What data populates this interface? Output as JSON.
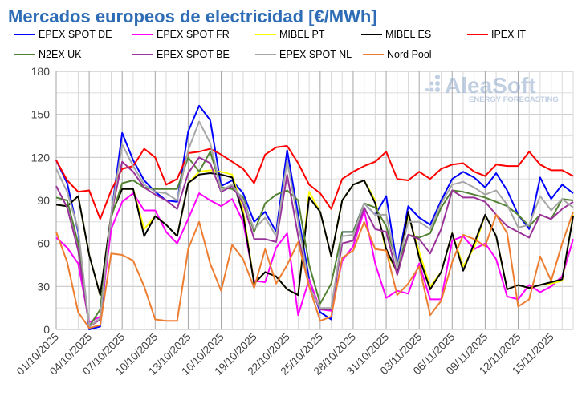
{
  "chart_data": {
    "type": "line",
    "title": "Mercados europeos de electricidad [€/MWh]",
    "title_color": "#2e6db5",
    "watermark": {
      "brand": "AleaSoft",
      "tagline": "ENERGY FORECASTING"
    },
    "ylim": [
      0,
      180
    ],
    "yticks": [
      0,
      30,
      60,
      90,
      120,
      150,
      180
    ],
    "grid": true,
    "legend_placement": "top",
    "x_start": "01/10/2025",
    "x_end": "17/11/2025",
    "xtick_labels": [
      "01/10/2025",
      "04/10/2025",
      "07/10/2025",
      "10/10/2025",
      "13/10/2025",
      "16/10/2025",
      "19/10/2025",
      "22/10/2025",
      "25/10/2025",
      "28/10/2025",
      "31/10/2025",
      "03/11/2025",
      "06/11/2025",
      "09/11/2025",
      "12/11/2025",
      "15/11/2025"
    ],
    "series": [
      {
        "name": "EPEX SPOT DE",
        "color": "#0000ff",
        "values": [
          118,
          102,
          68,
          0,
          2,
          80,
          137,
          118,
          104,
          96,
          90,
          89,
          138,
          156,
          146,
          100,
          104,
          95,
          75,
          82,
          68,
          125,
          80,
          35,
          12,
          7,
          68,
          68,
          88,
          80,
          93,
          44,
          86,
          78,
          73,
          90,
          105,
          110,
          106,
          99,
          109,
          97,
          80,
          70,
          106,
          91,
          101,
          95
        ]
      },
      {
        "name": "EPEX SPOT FR",
        "color": "#ff00ff",
        "values": [
          64,
          57,
          46,
          5,
          9,
          70,
          89,
          95,
          83,
          83,
          68,
          60,
          77,
          95,
          90,
          86,
          91,
          75,
          34,
          33,
          57,
          67,
          10,
          35,
          14,
          13,
          48,
          58,
          83,
          46,
          22,
          27,
          25,
          46,
          21,
          21,
          62,
          65,
          56,
          60,
          49,
          23,
          21,
          31,
          26,
          30,
          37,
          63
        ]
      },
      {
        "name": "MIBEL PT",
        "color": "#ffff00",
        "values": [
          87,
          86,
          93,
          52,
          24,
          80,
          98,
          98,
          70,
          79,
          73,
          65,
          102,
          110,
          111,
          110,
          108,
          83,
          32,
          40,
          37,
          28,
          24,
          96,
          82,
          51,
          90,
          101,
          104,
          90,
          54,
          40,
          80,
          54,
          30,
          40,
          67,
          44,
          57,
          80,
          65,
          28,
          31,
          29,
          31,
          32,
          34,
          80
        ]
      },
      {
        "name": "MIBEL ES",
        "color": "#000000",
        "values": [
          87,
          86,
          93,
          52,
          24,
          80,
          98,
          98,
          65,
          79,
          73,
          65,
          102,
          108,
          109,
          108,
          106,
          80,
          32,
          40,
          37,
          28,
          24,
          92,
          82,
          51,
          90,
          101,
          104,
          88,
          56,
          40,
          82,
          50,
          28,
          40,
          67,
          41,
          60,
          80,
          65,
          28,
          31,
          29,
          31,
          33,
          35,
          79
        ]
      },
      {
        "name": "IPEX IT",
        "color": "#ff0000",
        "values": [
          118,
          104,
          96,
          97,
          77,
          97,
          112,
          114,
          126,
          120,
          101,
          105,
          123,
          124,
          126,
          122,
          117,
          112,
          102,
          122,
          127,
          128,
          116,
          101,
          95,
          84,
          105,
          110,
          114,
          117,
          124,
          105,
          104,
          110,
          105,
          112,
          115,
          116,
          110,
          107,
          115,
          114,
          114,
          124,
          115,
          111,
          111,
          107
        ]
      },
      {
        "name": "N2EX UK",
        "color": "#548235",
        "values": [
          92,
          90,
          60,
          2,
          14,
          78,
          102,
          104,
          99,
          98,
          98,
          98,
          120,
          110,
          124,
          99,
          98,
          92,
          68,
          88,
          94,
          97,
          90,
          45,
          18,
          32,
          68,
          68,
          88,
          85,
          72,
          45,
          66,
          64,
          67,
          85,
          97,
          96,
          94,
          92,
          89,
          86,
          80,
          72,
          80,
          77,
          91,
          90
        ]
      },
      {
        "name": "EPEX SPOT BE",
        "color": "#993399",
        "values": [
          100,
          85,
          55,
          2,
          7,
          80,
          117,
          110,
          99,
          94,
          90,
          84,
          109,
          120,
          116,
          96,
          100,
          88,
          63,
          63,
          61,
          108,
          65,
          30,
          14,
          14,
          60,
          62,
          85,
          70,
          68,
          38,
          66,
          63,
          53,
          70,
          97,
          92,
          92,
          89,
          80,
          72,
          68,
          64,
          80,
          77,
          84,
          89
        ]
      },
      {
        "name": "EPEX SPOT NL",
        "color": "#a6a6a6",
        "values": [
          112,
          96,
          70,
          2,
          8,
          80,
          129,
          114,
          101,
          96,
          95,
          90,
          125,
          145,
          130,
          97,
          101,
          90,
          70,
          78,
          65,
          118,
          75,
          30,
          15,
          15,
          65,
          66,
          88,
          80,
          80,
          43,
          75,
          75,
          70,
          88,
          101,
          103,
          99,
          94,
          97,
          87,
          71,
          73,
          93,
          83,
          91,
          85
        ]
      },
      {
        "name": "Nord Pool",
        "color": "#ed7d31",
        "values": [
          68,
          47,
          12,
          1,
          3,
          53,
          52,
          48,
          30,
          7,
          6,
          6,
          56,
          75,
          46,
          27,
          59,
          49,
          29,
          56,
          32,
          45,
          61,
          30,
          6,
          9,
          50,
          55,
          75,
          56,
          55,
          24,
          32,
          44,
          10,
          20,
          47,
          66,
          63,
          58,
          80,
          67,
          16,
          21,
          51,
          34,
          60,
          82
        ]
      }
    ]
  }
}
